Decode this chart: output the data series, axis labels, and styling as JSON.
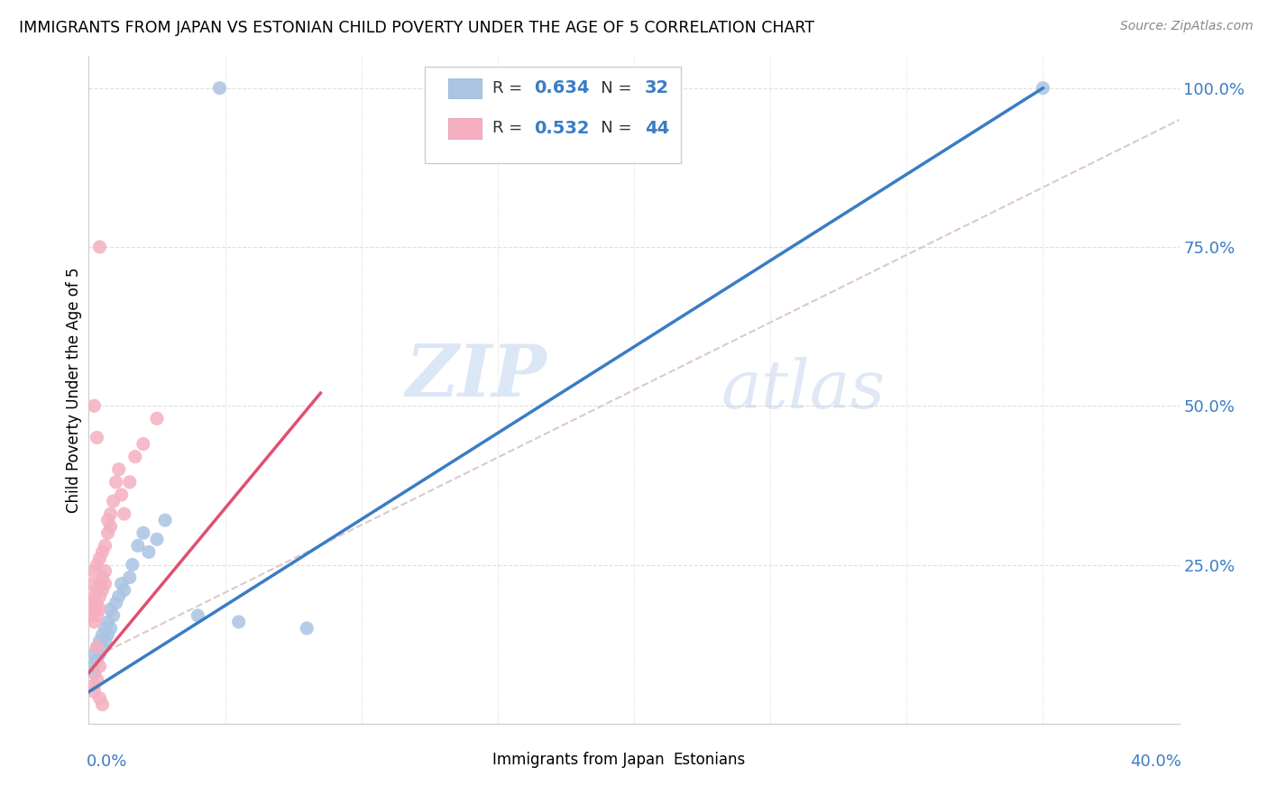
{
  "title": "IMMIGRANTS FROM JAPAN VS ESTONIAN CHILD POVERTY UNDER THE AGE OF 5 CORRELATION CHART",
  "source": "Source: ZipAtlas.com",
  "ylabel": "Child Poverty Under the Age of 5",
  "yticks": [
    0,
    0.25,
    0.5,
    0.75,
    1.0
  ],
  "ytick_labels": [
    "",
    "25.0%",
    "50.0%",
    "75.0%",
    "100.0%"
  ],
  "xlim": [
    0,
    0.4
  ],
  "ylim": [
    0,
    1.05
  ],
  "blue_R": 0.634,
  "blue_N": 32,
  "pink_R": 0.532,
  "pink_N": 44,
  "blue_color": "#aac4e2",
  "pink_color": "#f5afc0",
  "blue_line_color": "#3a7cc5",
  "pink_line_color": "#e05070",
  "legend_blue_label": "Immigrants from Japan",
  "legend_pink_label": "Estonians",
  "watermark_zip": "ZIP",
  "watermark_atlas": "atlas",
  "blue_scatter_x": [
    0.001,
    0.002,
    0.002,
    0.003,
    0.003,
    0.004,
    0.004,
    0.005,
    0.005,
    0.006,
    0.006,
    0.007,
    0.007,
    0.008,
    0.008,
    0.009,
    0.01,
    0.011,
    0.012,
    0.013,
    0.015,
    0.016,
    0.018,
    0.02,
    0.022,
    0.025,
    0.028,
    0.04,
    0.055,
    0.08,
    0.048,
    0.35
  ],
  "blue_scatter_y": [
    0.09,
    0.11,
    0.08,
    0.12,
    0.1,
    0.13,
    0.11,
    0.14,
    0.12,
    0.15,
    0.13,
    0.16,
    0.14,
    0.18,
    0.15,
    0.17,
    0.19,
    0.2,
    0.22,
    0.21,
    0.23,
    0.25,
    0.28,
    0.3,
    0.27,
    0.29,
    0.32,
    0.17,
    0.16,
    0.15,
    1.0,
    1.0
  ],
  "pink_scatter_x": [
    0.001,
    0.001,
    0.001,
    0.002,
    0.002,
    0.002,
    0.002,
    0.003,
    0.003,
    0.003,
    0.003,
    0.004,
    0.004,
    0.004,
    0.004,
    0.005,
    0.005,
    0.005,
    0.006,
    0.006,
    0.006,
    0.007,
    0.007,
    0.008,
    0.008,
    0.009,
    0.01,
    0.011,
    0.012,
    0.013,
    0.015,
    0.017,
    0.02,
    0.025,
    0.002,
    0.003,
    0.004,
    0.005,
    0.002,
    0.003,
    0.004,
    0.003,
    0.002,
    0.004
  ],
  "pink_scatter_y": [
    0.22,
    0.19,
    0.17,
    0.24,
    0.2,
    0.18,
    0.16,
    0.25,
    0.21,
    0.19,
    0.17,
    0.26,
    0.22,
    0.2,
    0.18,
    0.27,
    0.23,
    0.21,
    0.28,
    0.24,
    0.22,
    0.32,
    0.3,
    0.33,
    0.31,
    0.35,
    0.38,
    0.4,
    0.36,
    0.33,
    0.38,
    0.42,
    0.44,
    0.48,
    0.5,
    0.45,
    0.75,
    0.03,
    0.05,
    0.07,
    0.09,
    0.12,
    0.06,
    0.04
  ],
  "blue_line_x": [
    0.0,
    0.35
  ],
  "blue_line_y": [
    0.05,
    1.0
  ],
  "pink_line_x": [
    0.0,
    0.085
  ],
  "pink_line_y": [
    0.08,
    0.52
  ],
  "diag_line_color": "#ddc8c8",
  "diag_line_x": [
    0.0,
    0.4
  ],
  "diag_line_y": [
    0.1,
    0.95
  ]
}
